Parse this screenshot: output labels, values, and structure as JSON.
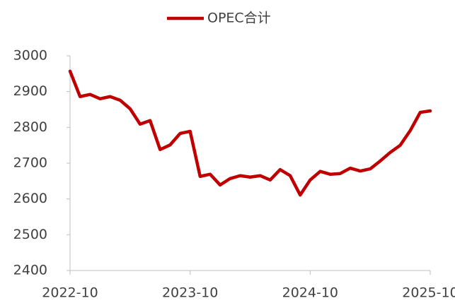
{
  "chart_data": {
    "type": "line",
    "categories": [
      "2022-10",
      null,
      null,
      null,
      null,
      null,
      null,
      null,
      null,
      null,
      null,
      null,
      "2023-10",
      null,
      null,
      null,
      null,
      null,
      null,
      null,
      null,
      null,
      null,
      null,
      "2024-10",
      null,
      null,
      null,
      null,
      null,
      null,
      null,
      null,
      null,
      null,
      null,
      "2025-10"
    ],
    "series": [
      {
        "name": "OPEC合计",
        "color": "#c00000",
        "values": [
          2957,
          2886,
          2892,
          2880,
          2886,
          2876,
          2852,
          2809,
          2819,
          2738,
          2751,
          2783,
          2789,
          2663,
          2669,
          2639,
          2657,
          2665,
          2661,
          2665,
          2653,
          2682,
          2665,
          2611,
          2653,
          2677,
          2669,
          2671,
          2686,
          2678,
          2684,
          2706,
          2730,
          2750,
          2791,
          2842,
          2846
        ]
      }
    ],
    "ylim": [
      2400,
      3000
    ],
    "yticks": [
      2400,
      2500,
      2600,
      2700,
      2800,
      2900,
      3000
    ],
    "grid": false,
    "legend": "top"
  }
}
